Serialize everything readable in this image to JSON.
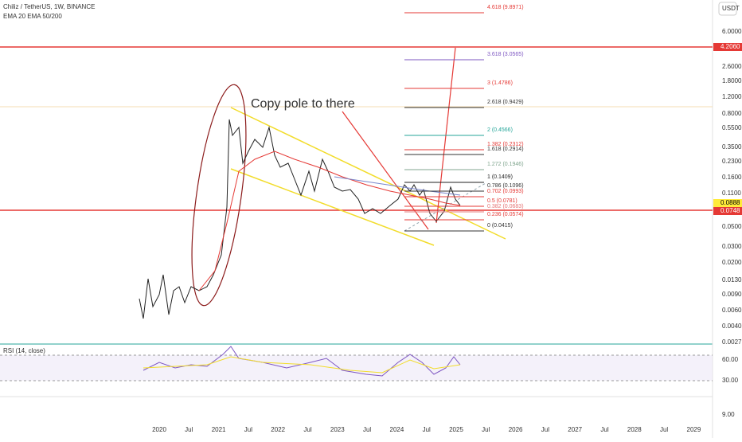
{
  "header": {
    "symbol": "Chiliz / TetherUS, 1W, BINANCE",
    "indicator": "EMA 20 EMA 50/200"
  },
  "annotation": "Copy pole to there",
  "price_axis": {
    "currency": "USDT",
    "labels": [
      "6.0000",
      "2.6000",
      "1.8000",
      "1.2000",
      "0.8000",
      "0.5500",
      "0.3500",
      "0.2300",
      "0.1600",
      "0.1100",
      "0.0500",
      "0.0300",
      "0.0200",
      "0.0130",
      "0.0090",
      "0.0060",
      "0.0040",
      "0.0027"
    ],
    "current_price": "0.0888",
    "level_upper": "4.2060",
    "level_lower": "0.0748"
  },
  "fib_levels": [
    {
      "label": "4.618 (9.8971)",
      "color": "#e53935"
    },
    {
      "label": "3.618 (3.0565)",
      "color": "#7e57c2"
    },
    {
      "label": "3 (1.4786)",
      "color": "#e53935"
    },
    {
      "label": "2.618 (0.9429)",
      "color": "#333333"
    },
    {
      "label": "2 (0.4566)",
      "color": "#26a69a"
    },
    {
      "label": "1.618 (0.2914)",
      "color": "#333333"
    },
    {
      "label": "1.382 (0.2312)",
      "color": "#e53935"
    },
    {
      "label": "1.272 (0.1946)",
      "color": "#81a68f"
    },
    {
      "label": "1 (0.1409)",
      "color": "#222222"
    },
    {
      "label": "0.786 (0.1096)",
      "color": "#333333"
    },
    {
      "label": "0.702 (0.0993)",
      "color": "#e53935"
    },
    {
      "label": "0.5 (0.0781)",
      "color": "#e53935"
    },
    {
      "label": "0.382 (0.0683)",
      "color": "#e57373"
    },
    {
      "label": "0.236 (0.0574)",
      "color": "#e53935"
    },
    {
      "label": "0 (0.0415)",
      "color": "#333333"
    }
  ],
  "rsi": {
    "title": "RSI (14, close)",
    "labels": [
      "60.00",
      "30.00",
      "9.00"
    ]
  },
  "time_axis": [
    "2020",
    "Jul",
    "2021",
    "Jul",
    "2022",
    "Jul",
    "2023",
    "Jul",
    "2024",
    "Jul",
    "2025",
    "Jul",
    "2026",
    "Jul",
    "2027",
    "Jul",
    "2028",
    "Jul",
    "2029"
  ]
}
